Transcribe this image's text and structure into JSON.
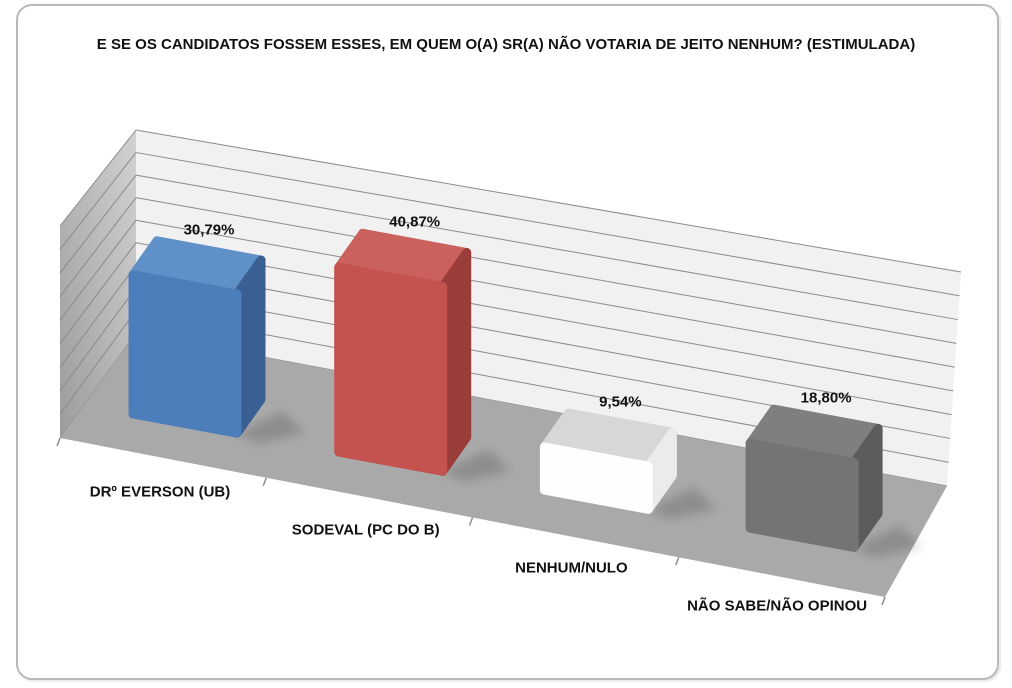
{
  "page": {
    "background": "#ffffff",
    "border_color": "#b9b9b9"
  },
  "chart_data": {
    "type": "bar",
    "projection": "3d-perspective",
    "title": "E SE OS CANDIDATOS FOSSEM ESSES, EM QUEM O(A) SR(A) NÃO VOTARIA DE JEITO NENHUM? (ESTIMULADA)",
    "categories": [
      "DRº EVERSON (UB)",
      "SODEVAL (PC DO B)",
      "NENHUM/NULO",
      "NÃO SABE/NÃO OPINOU"
    ],
    "values": [
      30.79,
      40.87,
      9.54,
      18.8
    ],
    "value_labels": [
      "30,79%",
      "40,87%",
      "9,54%",
      "18,80%"
    ],
    "xlabel": "",
    "ylabel": "",
    "ylim": [
      0,
      45
    ],
    "gridline_step_pct": 5,
    "grid": true,
    "legend": "none",
    "label_color": "#111111",
    "series_colors": [
      {
        "front": "#4C7EBC",
        "top": "#6090C8",
        "side": "#395F93"
      },
      {
        "front": "#C4524E",
        "top": "#CB615D",
        "side": "#9A3C39"
      },
      {
        "front": "#FEFEFE",
        "top": "#D7D7D7",
        "side": "#EBEBEB"
      },
      {
        "front": "#747474",
        "top": "#7F7F7F",
        "side": "#5C5C5C"
      }
    ],
    "back_wall_color": "#F1F1F1",
    "side_wall_color_dark": "#9C9C9C",
    "side_wall_color_light": "#D2D2D2",
    "floor_color": "#A9A9A9",
    "gridline_color": "#8A8A8A"
  }
}
